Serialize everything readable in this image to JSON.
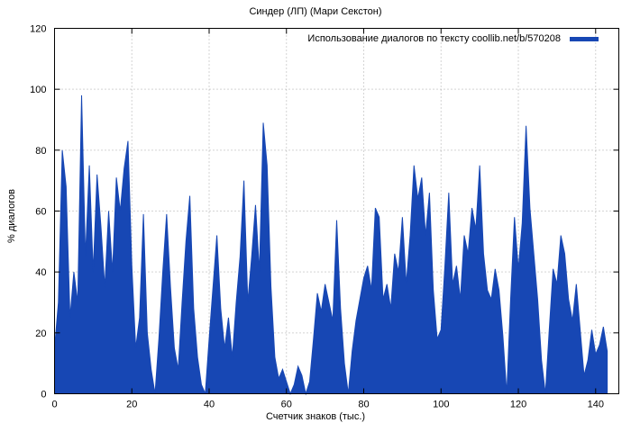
{
  "colors": {
    "series": "#1747b4",
    "grid": "#a8a8a8",
    "border": "#000000",
    "text": "#000000",
    "background": "#ffffff"
  },
  "chart_data": {
    "type": "area",
    "title": "Синдер (ЛП) (Мари Секстон)",
    "legend": "Использование диалогов по тексту coollib.net/b/570208",
    "xlabel": "Счетчик знаков (тыс.)",
    "ylabel": "% диалогов",
    "xlim": [
      0,
      146
    ],
    "ylim": [
      0,
      120
    ],
    "xticks": [
      0,
      20,
      40,
      60,
      80,
      100,
      120,
      140
    ],
    "yticks": [
      0,
      20,
      40,
      60,
      80,
      100,
      120
    ],
    "grid": true,
    "legend_position": "top-right",
    "x_step": 1,
    "values": [
      15,
      30,
      80,
      68,
      25,
      40,
      30,
      98,
      45,
      75,
      40,
      72,
      55,
      35,
      60,
      40,
      71,
      60,
      74,
      83,
      42,
      15,
      25,
      59,
      20,
      8,
      0,
      18,
      40,
      59,
      35,
      15,
      8,
      30,
      50,
      65,
      28,
      12,
      3,
      0,
      18,
      35,
      52,
      28,
      15,
      25,
      12,
      30,
      45,
      70,
      30,
      45,
      62,
      40,
      89,
      75,
      35,
      12,
      5,
      8,
      4,
      0,
      3,
      9,
      6,
      0,
      4,
      18,
      33,
      27,
      36,
      30,
      24,
      57,
      28,
      10,
      0,
      14,
      24,
      31,
      38,
      42,
      34,
      61,
      58,
      31,
      36,
      28,
      46,
      40,
      58,
      36,
      52,
      75,
      64,
      71,
      52,
      66,
      34,
      18,
      21,
      42,
      66,
      36,
      42,
      31,
      52,
      46,
      61,
      54,
      75,
      46,
      34,
      31,
      41,
      34,
      19,
      0,
      31,
      58,
      41,
      56,
      88,
      61,
      46,
      31,
      11,
      0,
      21,
      41,
      36,
      52,
      46,
      31,
      24,
      36,
      21,
      6,
      11,
      21,
      13,
      16,
      22,
      14
    ]
  }
}
